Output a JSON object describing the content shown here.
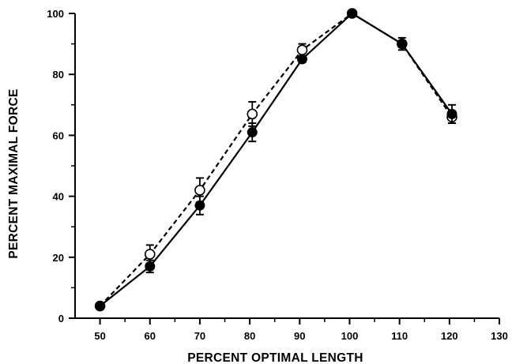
{
  "chart_data": {
    "type": "line",
    "title": "",
    "xlabel": "PERCENT OPTIMAL LENGTH",
    "ylabel": "PERCENT MAXIMAL FORCE",
    "xlim": [
      45,
      130
    ],
    "ylim": [
      0,
      100
    ],
    "x_ticks": [
      50,
      60,
      70,
      80,
      90,
      100,
      110,
      120,
      130
    ],
    "y_ticks": [
      0,
      20,
      40,
      60,
      80,
      100
    ],
    "grid": false,
    "legend": "none",
    "series": [
      {
        "marker": "filled-circle",
        "line_style": "solid",
        "color": "#000000",
        "x": [
          50,
          60,
          70,
          80.5,
          90.5,
          100.5,
          110.5,
          120.5
        ],
        "y": [
          4,
          17,
          37,
          61,
          85,
          100,
          90,
          67
        ],
        "err": [
          1,
          2,
          3,
          3,
          1,
          0,
          2,
          3
        ]
      },
      {
        "marker": "open-circle",
        "line_style": "dashed",
        "color": "#000000",
        "x": [
          50,
          60,
          70,
          80.5,
          90.5,
          100.5,
          110.5,
          120.5
        ],
        "y": [
          4,
          21,
          42,
          67,
          88,
          100,
          90,
          66
        ],
        "err": [
          1,
          3,
          4,
          4,
          2,
          0,
          1,
          2
        ]
      }
    ]
  }
}
